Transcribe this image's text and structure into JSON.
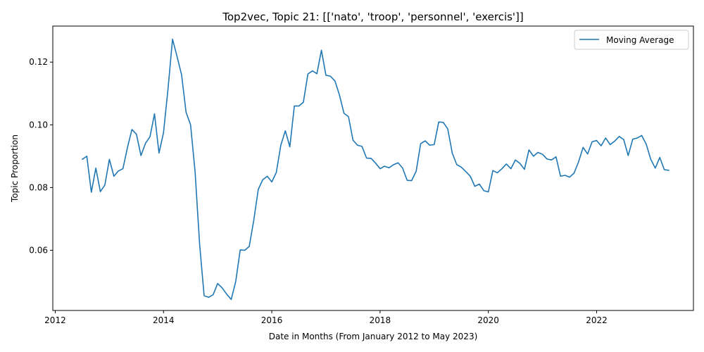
{
  "chart_data": {
    "type": "line",
    "title": "Top2vec, Topic 21: [['nato', 'troop', 'personnel', 'exercis']]",
    "xlabel": "Date in Months (From January 2012 to May 2023)",
    "ylabel": "Topic Proportion",
    "xlim": [
      "2011-12-15",
      "2023-10-15"
    ],
    "ylim": [
      0.0408,
      0.1315
    ],
    "x_ticks": [
      "2012",
      "2014",
      "2016",
      "2018",
      "2020",
      "2022"
    ],
    "y_ticks": [
      "0.06",
      "0.08",
      "0.10",
      "0.12"
    ],
    "grid": false,
    "legend_position": "top-right",
    "series": [
      {
        "name": "Moving Average",
        "color": "#1f77b4",
        "x": [
          "2012-07",
          "2012-08",
          "2012-09",
          "2012-10",
          "2012-11",
          "2012-12",
          "2013-01",
          "2013-02",
          "2013-03",
          "2013-04",
          "2013-05",
          "2013-06",
          "2013-07",
          "2013-08",
          "2013-09",
          "2013-10",
          "2013-11",
          "2013-12",
          "2014-01",
          "2014-02",
          "2014-03",
          "2014-04",
          "2014-05",
          "2014-06",
          "2014-07",
          "2014-08",
          "2014-09",
          "2014-10",
          "2014-11",
          "2014-12",
          "2015-01",
          "2015-02",
          "2015-03",
          "2015-04",
          "2015-05",
          "2015-06",
          "2015-07",
          "2015-08",
          "2015-09",
          "2015-10",
          "2015-11",
          "2015-12",
          "2016-01",
          "2016-02",
          "2016-03",
          "2016-04",
          "2016-05",
          "2016-06",
          "2016-07",
          "2016-08",
          "2016-09",
          "2016-10",
          "2016-11",
          "2016-12",
          "2017-01",
          "2017-02",
          "2017-03",
          "2017-04",
          "2017-05",
          "2017-06",
          "2017-07",
          "2017-08",
          "2017-09",
          "2017-10",
          "2017-11",
          "2017-12",
          "2018-01",
          "2018-02",
          "2018-03",
          "2018-04",
          "2018-05",
          "2018-06",
          "2018-07",
          "2018-08",
          "2018-09",
          "2018-10",
          "2018-11",
          "2018-12",
          "2019-01",
          "2019-02",
          "2019-03",
          "2019-04",
          "2019-05",
          "2019-06",
          "2019-07",
          "2019-08",
          "2019-09",
          "2019-10",
          "2019-11",
          "2019-12",
          "2020-01",
          "2020-02",
          "2020-03",
          "2020-04",
          "2020-05",
          "2020-06",
          "2020-07",
          "2020-08",
          "2020-09",
          "2020-10",
          "2020-11",
          "2020-12",
          "2021-01",
          "2021-02",
          "2021-03",
          "2021-04",
          "2021-05",
          "2021-06",
          "2021-07",
          "2021-08",
          "2021-09",
          "2021-10",
          "2021-11",
          "2021-12",
          "2022-01",
          "2022-02",
          "2022-03",
          "2022-04",
          "2022-05",
          "2022-06",
          "2022-07",
          "2022-08",
          "2022-09",
          "2022-10",
          "2022-11",
          "2022-12",
          "2023-01",
          "2023-02",
          "2023-03",
          "2023-04",
          "2023-05"
        ],
        "y": [
          0.089,
          0.09,
          0.0785,
          0.0862,
          0.0787,
          0.0808,
          0.089,
          0.0836,
          0.0853,
          0.086,
          0.0927,
          0.0985,
          0.097,
          0.0902,
          0.0941,
          0.0962,
          0.1035,
          0.091,
          0.0975,
          0.1115,
          0.1273,
          0.1218,
          0.116,
          0.104,
          0.1,
          0.085,
          0.062,
          0.0455,
          0.045,
          0.0458,
          0.0494,
          0.048,
          0.046,
          0.0443,
          0.05,
          0.0601,
          0.06,
          0.0612,
          0.0695,
          0.0794,
          0.0825,
          0.0836,
          0.0818,
          0.0848,
          0.0935,
          0.0981,
          0.093,
          0.106,
          0.106,
          0.1072,
          0.1162,
          0.1172,
          0.1163,
          0.1238,
          0.1158,
          0.1155,
          0.114,
          0.1095,
          0.1037,
          0.1026,
          0.0951,
          0.0935,
          0.0931,
          0.0894,
          0.0893,
          0.0878,
          0.086,
          0.0868,
          0.0863,
          0.0873,
          0.0879,
          0.0862,
          0.0823,
          0.0822,
          0.0852,
          0.094,
          0.0949,
          0.0935,
          0.0937,
          0.1009,
          0.1008,
          0.0987,
          0.091,
          0.0873,
          0.0865,
          0.0851,
          0.0836,
          0.0804,
          0.0811,
          0.079,
          0.0786,
          0.0854,
          0.0847,
          0.086,
          0.0875,
          0.086,
          0.0888,
          0.0877,
          0.0858,
          0.092,
          0.09,
          0.0912,
          0.0906,
          0.0891,
          0.0888,
          0.0898,
          0.0836,
          0.0839,
          0.0833,
          0.0846,
          0.0882,
          0.0928,
          0.0907,
          0.0946,
          0.095,
          0.0933,
          0.0958,
          0.0937,
          0.0948,
          0.0963,
          0.0953,
          0.0902,
          0.0954,
          0.0958,
          0.0966,
          0.0938,
          0.089,
          0.0862,
          0.0896,
          0.0857,
          0.0855
        ]
      }
    ]
  }
}
